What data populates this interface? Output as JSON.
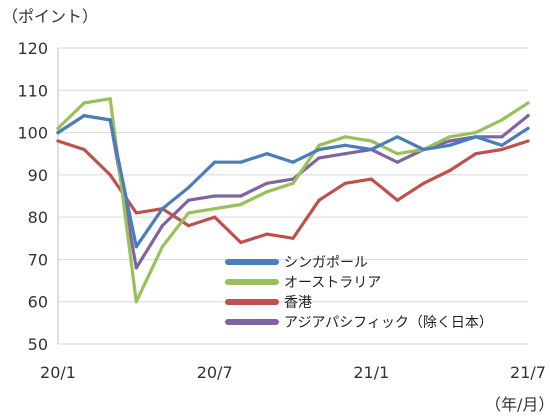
{
  "chart_data": {
    "type": "line",
    "ylabel": "（ポイント）",
    "xlabel": "（年/月）",
    "ylim": [
      50,
      120
    ],
    "yticks": [
      "50",
      "60",
      "70",
      "80",
      "90",
      "100",
      "110",
      "120"
    ],
    "xticks": [
      "20/1",
      "20/7",
      "21/1",
      "21/7"
    ],
    "grid": "horizontal",
    "legend_position": "inside-lower-right",
    "x": [
      "20/1",
      "20/2",
      "20/3",
      "20/4",
      "20/5",
      "20/6",
      "20/7",
      "20/8",
      "20/9",
      "20/10",
      "20/11",
      "20/12",
      "21/1",
      "21/2",
      "21/3",
      "21/4",
      "21/5",
      "21/6",
      "21/7"
    ],
    "series": [
      {
        "name": "シンガポール",
        "color": "#4a7ebb",
        "values": [
          100,
          104,
          103,
          73,
          82,
          87,
          93,
          93,
          95,
          93,
          96,
          97,
          96,
          99,
          96,
          97,
          99,
          97,
          101
        ]
      },
      {
        "name": "オーストラリア",
        "color": "#98c15a",
        "values": [
          101,
          107,
          108,
          60,
          73,
          81,
          82,
          83,
          86,
          88,
          97,
          99,
          98,
          95,
          96,
          99,
          100,
          103,
          107
        ]
      },
      {
        "name": "香港",
        "color": "#c0504d",
        "values": [
          98,
          96,
          90,
          81,
          82,
          78,
          80,
          74,
          76,
          75,
          84,
          88,
          89,
          84,
          88,
          91,
          95,
          96,
          98
        ]
      },
      {
        "name": "アジアパシフィック（除く日本）",
        "color": "#8064a2",
        "values": [
          100,
          104,
          103,
          68,
          78,
          84,
          85,
          85,
          88,
          89,
          94,
          95,
          96,
          93,
          96,
          98,
          99,
          99,
          104
        ]
      }
    ]
  }
}
